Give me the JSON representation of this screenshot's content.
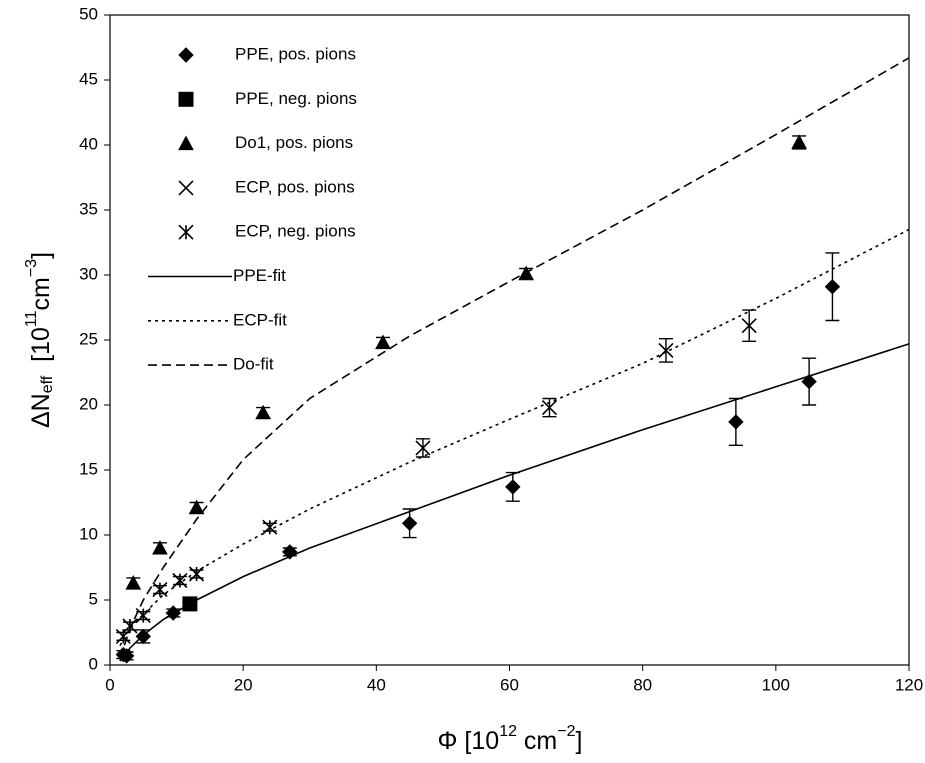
{
  "chart_data": {
    "type": "scatter",
    "x_label": [
      "Φ [10",
      "12",
      " cm",
      "−2",
      "]"
    ],
    "y_label": [
      "ΔN",
      "eff",
      "  [10",
      "11",
      "cm",
      "−3",
      "]"
    ],
    "xlim": [
      0,
      120
    ],
    "xticks": [
      0,
      20,
      40,
      60,
      80,
      100,
      120
    ],
    "ylim": [
      0,
      50
    ],
    "yticks": [
      0,
      5,
      10,
      15,
      20,
      25,
      30,
      35,
      40,
      45,
      50
    ],
    "grid": false,
    "legend": "upper left",
    "series": [
      {
        "name": "PPE, pos. pions",
        "color": "#000000",
        "marker": "diamond",
        "x": [
          2,
          2.5,
          5,
          9.5,
          27,
          45,
          60.5,
          94,
          105,
          108.5
        ],
        "y": [
          0.8,
          0.7,
          2.2,
          4.0,
          8.7,
          10.9,
          13.7,
          18.7,
          21.8,
          29.1
        ],
        "errors": [
          0.3,
          0.3,
          0.5,
          0.3,
          0.3,
          1.1,
          1.1,
          1.8,
          1.8,
          2.6
        ]
      },
      {
        "name": "PPE, neg. pions",
        "color": "#000000",
        "marker": "square",
        "x": [
          12
        ],
        "y": [
          4.7
        ],
        "errors": [
          0.3
        ]
      },
      {
        "name": "Do1, pos. pions",
        "color": "#000000",
        "marker": "triangle",
        "x": [
          3.5,
          7.5,
          13,
          23,
          41,
          62.5,
          103.5
        ],
        "y": [
          6.3,
          9.0,
          12.1,
          19.4,
          24.8,
          30.1,
          40.2
        ],
        "errors": [
          0.4,
          0.4,
          0.4,
          0.4,
          0.4,
          0.4,
          0.5
        ]
      },
      {
        "name": "ECP, pos. pions",
        "color": "#000000",
        "marker": "cross",
        "x": [
          47,
          66,
          83.5,
          96
        ],
        "y": [
          16.7,
          19.8,
          24.2,
          26.1
        ],
        "errors": [
          0.7,
          0.7,
          0.9,
          1.2
        ]
      },
      {
        "name": "ECP, neg. pions",
        "color": "#000000",
        "marker": "asterisk",
        "x": [
          2,
          3,
          5,
          7.5,
          10.5,
          13,
          24
        ],
        "y": [
          2.2,
          3.0,
          3.8,
          5.8,
          6.5,
          7.0,
          10.6
        ],
        "errors": [
          0.3,
          0.3,
          0.3,
          0.3,
          0.3,
          0.3,
          0.3
        ]
      },
      {
        "name": "PPE-fit",
        "color": "#000000",
        "dash": "solid",
        "x": [
          1.5,
          3,
          5,
          8,
          13,
          20,
          30,
          45,
          60,
          80,
          100,
          120
        ],
        "y": [
          0.3,
          1.3,
          2.3,
          3.5,
          5.0,
          6.8,
          9.0,
          11.8,
          14.6,
          18.1,
          21.4,
          24.7
        ]
      },
      {
        "name": "ECP-fit",
        "color": "#000000",
        "dash": "dotted",
        "x": [
          1.5,
          3,
          5,
          8,
          13,
          20,
          30,
          45,
          60,
          80,
          100,
          120
        ],
        "y": [
          1.5,
          2.8,
          3.9,
          5.4,
          7.2,
          9.3,
          12.0,
          15.6,
          18.9,
          23.2,
          28.2,
          33.5
        ]
      },
      {
        "name": "Do-fit",
        "color": "#000000",
        "dash": "dashed",
        "x": [
          1.5,
          3,
          5,
          8,
          13,
          20,
          30,
          45,
          60,
          80,
          100,
          120
        ],
        "y": [
          0.5,
          2.8,
          5.0,
          7.5,
          11.2,
          15.8,
          20.5,
          25.3,
          29.5,
          35.0,
          40.8,
          46.7
        ]
      }
    ]
  }
}
